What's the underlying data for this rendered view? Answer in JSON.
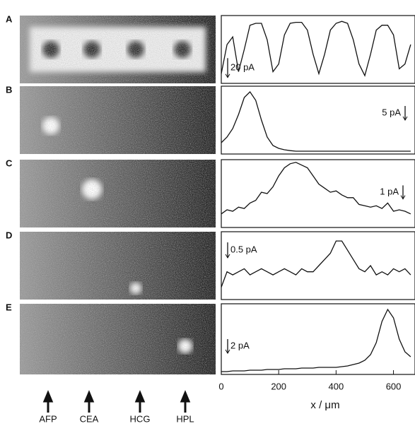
{
  "chart_data": [
    {
      "type": "line",
      "panel_label": "A",
      "scale_bar": {
        "value": 20,
        "label": "20 pA"
      },
      "xlim": [
        0,
        675
      ],
      "ylim": [
        0,
        70
      ],
      "x": [
        0,
        20,
        40,
        60,
        80,
        100,
        120,
        140,
        160,
        180,
        200,
        220,
        240,
        260,
        280,
        300,
        320,
        340,
        360,
        380,
        400,
        420,
        440,
        460,
        480,
        500,
        520,
        540,
        560,
        580,
        600,
        620,
        640,
        660
      ],
      "values": [
        10,
        40,
        48,
        12,
        35,
        60,
        62,
        62,
        45,
        12,
        20,
        50,
        62,
        63,
        63,
        55,
        30,
        10,
        30,
        55,
        62,
        64,
        62,
        45,
        20,
        8,
        30,
        55,
        60,
        60,
        50,
        15,
        20,
        40
      ]
    },
    {
      "type": "line",
      "panel_label": "B",
      "scale_bar": {
        "value": 5,
        "label": "5 pA"
      },
      "xlim": [
        0,
        675
      ],
      "ylim": [
        0,
        24
      ],
      "x": [
        0,
        20,
        40,
        60,
        80,
        100,
        120,
        140,
        160,
        180,
        200,
        220,
        240,
        260,
        280,
        300,
        320,
        340,
        360,
        380,
        400,
        420,
        440,
        460,
        480,
        500,
        520,
        540,
        560,
        580,
        600,
        620,
        640,
        660
      ],
      "values": [
        4,
        6,
        9,
        14,
        20,
        22,
        19,
        12,
        6,
        3,
        2,
        1.5,
        1.2,
        1,
        1,
        1,
        1,
        1,
        1,
        1,
        1,
        1,
        1,
        1,
        1,
        1,
        1,
        1,
        1,
        1,
        1,
        1,
        1,
        1
      ]
    },
    {
      "type": "line",
      "panel_label": "C",
      "scale_bar": {
        "value": 1,
        "label": "1 pA"
      },
      "xlim": [
        0,
        675
      ],
      "ylim": [
        0,
        5
      ],
      "x": [
        0,
        20,
        40,
        60,
        80,
        100,
        120,
        140,
        160,
        180,
        200,
        220,
        240,
        260,
        280,
        300,
        320,
        340,
        360,
        380,
        400,
        420,
        440,
        460,
        480,
        500,
        520,
        540,
        560,
        580,
        600,
        620,
        640,
        660
      ],
      "values": [
        1,
        1.3,
        1.2,
        1.5,
        1.4,
        1.8,
        2,
        2.6,
        2.5,
        3,
        3.8,
        4.4,
        4.7,
        4.8,
        4.6,
        4.4,
        3.8,
        3.2,
        2.9,
        2.6,
        2.7,
        2.4,
        2.2,
        2.2,
        1.7,
        1.6,
        1.5,
        1.6,
        1.4,
        1.8,
        1.2,
        1.3,
        1.2,
        1
      ]
    },
    {
      "type": "line",
      "panel_label": "D",
      "scale_bar": {
        "value": 0.5,
        "label": "0.5 pA"
      },
      "xlim": [
        0,
        675
      ],
      "ylim": [
        0,
        2.2
      ],
      "x": [
        0,
        20,
        40,
        60,
        80,
        100,
        120,
        140,
        160,
        180,
        200,
        220,
        240,
        260,
        280,
        300,
        320,
        340,
        360,
        380,
        400,
        420,
        440,
        460,
        480,
        500,
        520,
        540,
        560,
        580,
        600,
        620,
        640,
        660
      ],
      "values": [
        0.4,
        0.9,
        0.8,
        0.9,
        1,
        0.8,
        0.9,
        1,
        0.9,
        0.8,
        0.9,
        1,
        0.9,
        0.8,
        1,
        0.9,
        0.9,
        1.1,
        1.3,
        1.5,
        1.9,
        1.9,
        1.6,
        1.3,
        1,
        0.9,
        1.1,
        0.8,
        0.9,
        0.8,
        1,
        0.9,
        1,
        0.8
      ]
    },
    {
      "type": "line",
      "panel_label": "E",
      "scale_bar": {
        "value": 2,
        "label": "2 pA"
      },
      "xlim": [
        0,
        675
      ],
      "ylim": [
        0,
        10
      ],
      "x": [
        0,
        20,
        40,
        60,
        80,
        100,
        120,
        140,
        160,
        180,
        200,
        220,
        240,
        260,
        280,
        300,
        320,
        340,
        360,
        380,
        400,
        420,
        440,
        460,
        480,
        500,
        520,
        540,
        560,
        580,
        600,
        620,
        640,
        660
      ],
      "values": [
        0.4,
        0.4,
        0.5,
        0.5,
        0.5,
        0.6,
        0.6,
        0.6,
        0.7,
        0.7,
        0.7,
        0.8,
        0.8,
        0.8,
        0.9,
        0.9,
        0.9,
        1,
        1,
        1,
        1,
        1.1,
        1.2,
        1.4,
        1.6,
        2,
        2.8,
        4.5,
        7.5,
        9.2,
        8,
        5,
        3.2,
        2.5
      ],
      "xticks": [
        0,
        200,
        400,
        600
      ],
      "xlabel": "x / μm"
    }
  ],
  "image_labels": [
    "AFP",
    "CEA",
    "HCG",
    "HPL"
  ]
}
